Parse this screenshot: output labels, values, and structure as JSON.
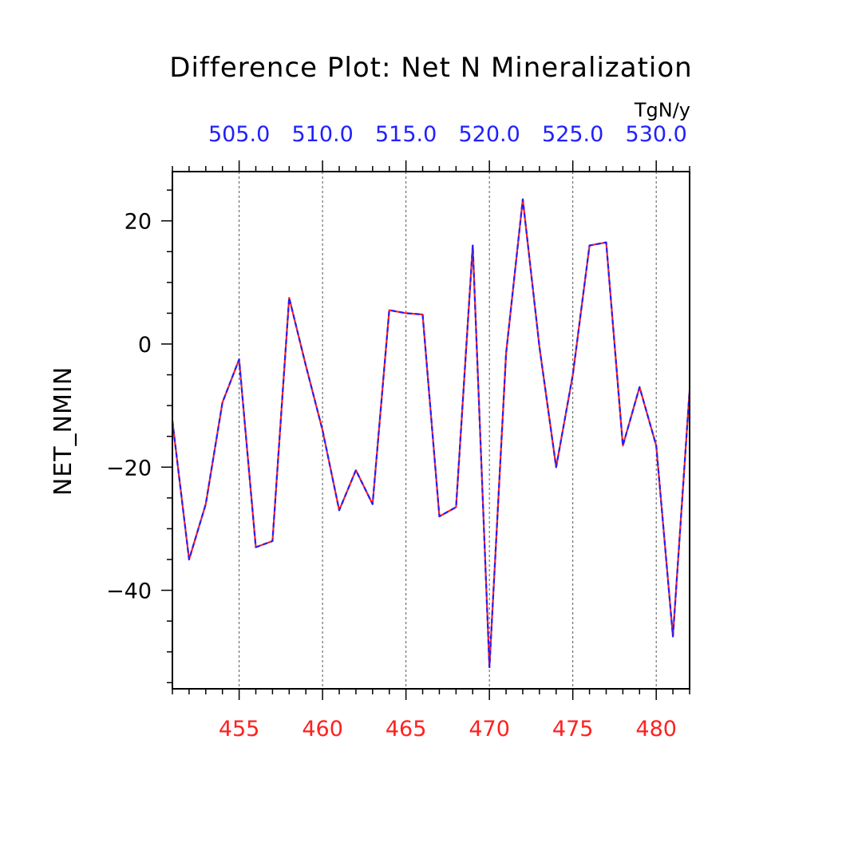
{
  "colors": {
    "bottom_axis": "#ff2020",
    "top_axis": "#2020ff",
    "series_a": "#ff2020",
    "series_b": "#2020ff",
    "grid": "#555555"
  },
  "chart_data": {
    "type": "line",
    "title": "Difference Plot: Net N Mineralization",
    "units": "TgN/y",
    "ylabel": "NET_NMIN",
    "xlabel": "",
    "xlim": [
      451,
      482
    ],
    "ylim": [
      -56,
      28
    ],
    "x_ticks_bottom": [
      455,
      460,
      465,
      470,
      475,
      480
    ],
    "x_tick_labels_bottom": [
      "455",
      "460",
      "465",
      "470",
      "475",
      "480"
    ],
    "x_tick_labels_top": [
      "505.0",
      "510.0",
      "515.0",
      "520.0",
      "525.0",
      "530.0"
    ],
    "y_ticks": [
      -40,
      -20,
      0,
      20
    ],
    "y_tick_labels": [
      "−40",
      "−20",
      "0",
      "20"
    ],
    "grid_x": true,
    "grid_y": false,
    "x": [
      451,
      452,
      453,
      454,
      455,
      456,
      457,
      458,
      459,
      460,
      461,
      462,
      463,
      464,
      465,
      466,
      467,
      468,
      469,
      470,
      471,
      472,
      473,
      474,
      475,
      476,
      477,
      478,
      479,
      480,
      481,
      482
    ],
    "series": [
      {
        "values": [
          -12.5,
          -35,
          -26,
          -9.5,
          -2.5,
          -33,
          -32,
          7.5,
          -3.5,
          -14,
          -27,
          -20.5,
          -26,
          5.5,
          5,
          4.8,
          -28,
          -26.5,
          16,
          -52.5,
          -1.5,
          23.5,
          -0.5,
          -20,
          -5,
          16,
          16.5,
          -16.5,
          -7,
          -16.5,
          -47.5,
          -7.5
        ]
      },
      {
        "values": [
          -12.5,
          -35,
          -26,
          -9.5,
          -2.5,
          -33,
          -32,
          7.5,
          -3.5,
          -14,
          -27,
          -20.5,
          -26,
          5.5,
          5,
          4.8,
          -28,
          -26.5,
          16,
          -52.5,
          -1.5,
          23.5,
          -0.5,
          -20,
          -5,
          16,
          16.5,
          -16.5,
          -7,
          -16.5,
          -47.5,
          -7.5
        ]
      }
    ]
  }
}
